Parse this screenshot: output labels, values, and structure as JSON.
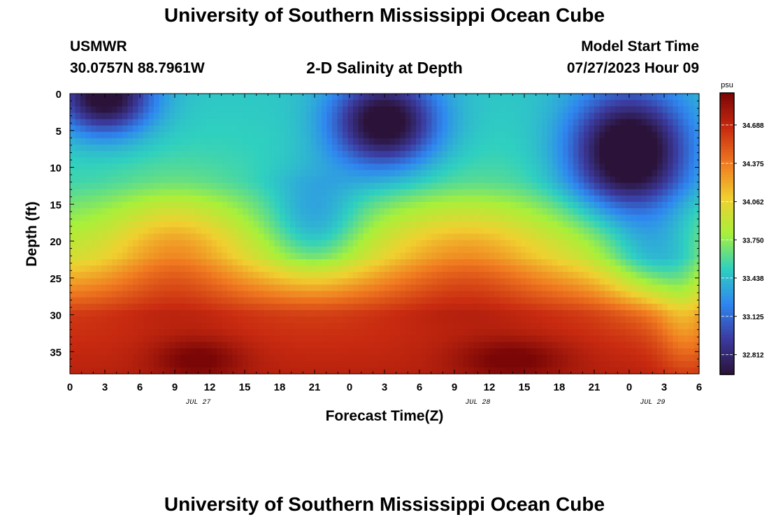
{
  "page": {
    "title": "University of Southern Mississippi Ocean Cube",
    "station": "USMWR",
    "coords": "30.0757N  88.7961W",
    "subtitle": "2-D Salinity at Depth",
    "model_label": "Model Start Time",
    "model_time": "07/27/2023 Hour 09",
    "footer_title": "University of Southern Mississippi Ocean Cube"
  },
  "chart_data": {
    "type": "heatmap",
    "title": "2-D Salinity at Depth",
    "xlabel": "Forecast Time(Z)",
    "ylabel": "Depth (ft)",
    "x_ticks": [
      "0",
      "3",
      "6",
      "9",
      "12",
      "15",
      "18",
      "21",
      "0",
      "3",
      "6",
      "9",
      "12",
      "15",
      "18",
      "21",
      "0",
      "3",
      "6"
    ],
    "x_date_labels": [
      {
        "label": "JUL 27",
        "at_hour": 11
      },
      {
        "label": "JUL 28",
        "at_hour": 35
      },
      {
        "label": "JUL 29",
        "at_hour": 50
      }
    ],
    "xlim_hours": [
      0,
      54
    ],
    "y_ticks": [
      "0",
      "5",
      "10",
      "15",
      "20",
      "25",
      "30",
      "35"
    ],
    "ylim_ft": [
      0,
      38
    ],
    "colorbar": {
      "unit": "psu",
      "ticks": [
        "34.688",
        "34.375",
        "34.062",
        "33.750",
        "33.438",
        "33.125",
        "32.812"
      ],
      "range": [
        32.65,
        34.95
      ],
      "colors": [
        "#2b1238",
        "#3b3a9e",
        "#2f86f0",
        "#2fd0c0",
        "#a8f03a",
        "#f0d030",
        "#f07a20",
        "#c82a10",
        "#7a0606"
      ]
    },
    "low_salinity_cores": [
      {
        "hour": 3,
        "depth_ft": 0.5
      },
      {
        "hour": 27,
        "depth_ft": 4
      },
      {
        "hour": 48,
        "depth_ft": 8
      }
    ],
    "high_salinity_cores": [
      {
        "hour": 11,
        "depth_ft": 36
      },
      {
        "hour": 38,
        "depth_ft": 36
      }
    ]
  }
}
